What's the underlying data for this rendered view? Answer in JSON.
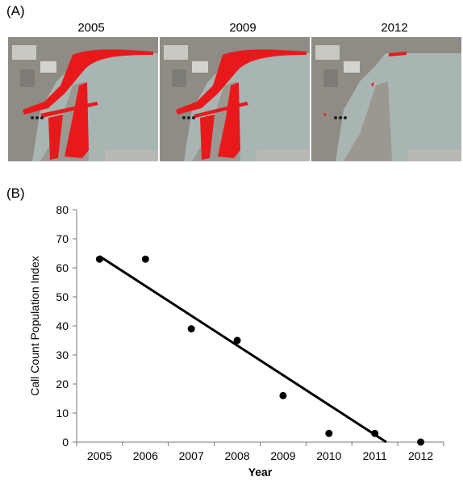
{
  "panels": {
    "a_label": "(A)",
    "b_label": "(B)"
  },
  "maps": [
    {
      "year": "2005",
      "marsh_extent": "large"
    },
    {
      "year": "2009",
      "marsh_extent": "large"
    },
    {
      "year": "2012",
      "marsh_extent": "small"
    }
  ],
  "colors": {
    "marsh_highlight": "#e8191b",
    "water": "#a9b5b3",
    "land": "#8e8c85",
    "line": "#000000"
  },
  "chart_data": {
    "type": "scatter",
    "title": "",
    "xlabel": "Year",
    "ylabel": "Call Count Population Index",
    "x_ticks": [
      "2005",
      "2006",
      "2007",
      "2008",
      "2009",
      "2010",
      "2011",
      "2012"
    ],
    "y_ticks": [
      "0",
      "10",
      "20",
      "30",
      "40",
      "50",
      "60",
      "70",
      "80"
    ],
    "ylim": [
      0,
      80
    ],
    "xlim": [
      2004.5,
      2012.5
    ],
    "points": [
      {
        "x": 2005,
        "y": 63
      },
      {
        "x": 2006,
        "y": 63
      },
      {
        "x": 2007,
        "y": 39
      },
      {
        "x": 2008,
        "y": 35
      },
      {
        "x": 2009,
        "y": 16
      },
      {
        "x": 2010,
        "y": 3
      },
      {
        "x": 2011,
        "y": 3
      },
      {
        "x": 2012,
        "y": 0
      }
    ],
    "trendline": {
      "x_start": 2005,
      "y_start": 64,
      "x_end": 2011.25,
      "y_end": 0
    },
    "grid": false,
    "legend": "none"
  }
}
